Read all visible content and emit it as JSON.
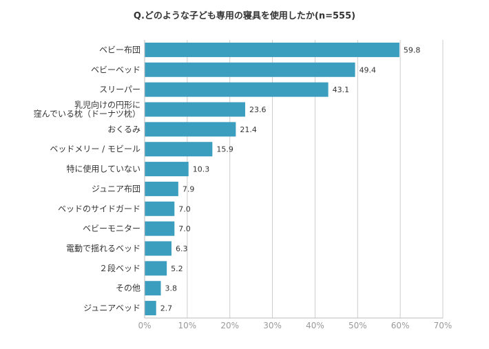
{
  "chart_data": {
    "type": "bar",
    "orientation": "horizontal",
    "title": "Q.どのような子ども専用の寝具を使用したか(n=555)",
    "categories": [
      [
        "ベビー布団"
      ],
      [
        "ベビーベッド"
      ],
      [
        "スリーパー"
      ],
      [
        "乳児向けの円形に",
        "窪んでいる枕（ドーナツ枕）"
      ],
      [
        "おくるみ"
      ],
      [
        "ベッドメリー / モビール"
      ],
      [
        "特に使用していない"
      ],
      [
        "ジュニア布団"
      ],
      [
        "ベッドのサイドガード"
      ],
      [
        "ベビーモニター"
      ],
      [
        "電動で揺れるベッド"
      ],
      [
        "２段ベッド"
      ],
      [
        "その他"
      ],
      [
        "ジュニアベッド"
      ]
    ],
    "values": [
      59.8,
      49.4,
      43.1,
      23.6,
      21.4,
      15.9,
      10.3,
      7.9,
      7.0,
      7.0,
      6.3,
      5.2,
      3.8,
      2.7
    ],
    "value_labels": [
      "59.8",
      "49.4",
      "43.1",
      "23.6",
      "21.4",
      "15.9",
      "10.3",
      "7.9",
      "7.0",
      "7.0",
      "6.3",
      "5.2",
      "3.8",
      "2.7"
    ],
    "xlim": [
      0,
      70
    ],
    "xticks": [
      "0%",
      "10%",
      "20%",
      "30%",
      "40%",
      "50%",
      "60%",
      "70%"
    ],
    "grid": true,
    "bar_color": "#3c9ebf",
    "grid_color": "#cccccc",
    "xlabel": "",
    "ylabel": ""
  }
}
